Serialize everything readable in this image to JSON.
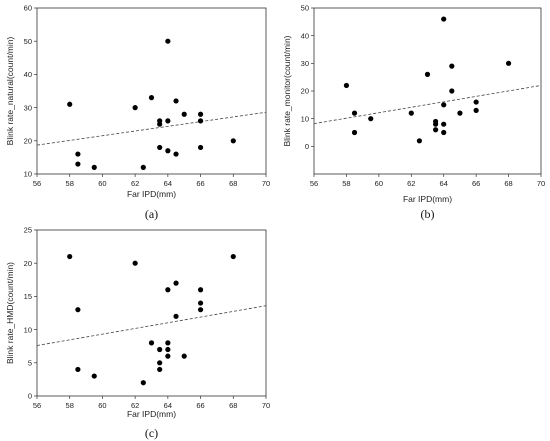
{
  "chart_data": [
    {
      "type": "scatter",
      "panel_label": "(a)",
      "xlabel": "Far IPD(mm)",
      "ylabel": "Blink rate_natural(count/min)",
      "xlim": [
        56,
        70
      ],
      "ylim": [
        10,
        60
      ],
      "xticks": [
        56,
        58,
        60,
        62,
        64,
        66,
        68,
        70
      ],
      "yticks": [
        10,
        20,
        30,
        40,
        50,
        60
      ],
      "points": [
        {
          "x": 58.0,
          "y": 31
        },
        {
          "x": 58.5,
          "y": 16
        },
        {
          "x": 58.5,
          "y": 13
        },
        {
          "x": 59.5,
          "y": 12
        },
        {
          "x": 62.0,
          "y": 30
        },
        {
          "x": 62.5,
          "y": 12
        },
        {
          "x": 63.0,
          "y": 33
        },
        {
          "x": 63.5,
          "y": 26
        },
        {
          "x": 63.5,
          "y": 25
        },
        {
          "x": 63.5,
          "y": 18
        },
        {
          "x": 64.0,
          "y": 50
        },
        {
          "x": 64.0,
          "y": 26
        },
        {
          "x": 64.0,
          "y": 17
        },
        {
          "x": 64.5,
          "y": 32
        },
        {
          "x": 64.5,
          "y": 16
        },
        {
          "x": 65.0,
          "y": 28
        },
        {
          "x": 66.0,
          "y": 28
        },
        {
          "x": 66.0,
          "y": 26
        },
        {
          "x": 66.0,
          "y": 18
        },
        {
          "x": 68.0,
          "y": 20
        }
      ],
      "trendline": {
        "x": [
          56,
          70
        ],
        "y": [
          18.7,
          28.6
        ],
        "style": "dashed"
      },
      "grid": false
    },
    {
      "type": "scatter",
      "panel_label": "(b)",
      "xlabel": "Far IPD(mm)",
      "ylabel": "Blink rate_monitor(count/min)",
      "xlim": [
        56,
        70
      ],
      "ylim": [
        -10,
        50
      ],
      "xticks": [
        56,
        58,
        60,
        62,
        64,
        66,
        68,
        70
      ],
      "yticks": [
        0,
        10,
        20,
        30,
        40,
        50
      ],
      "points": [
        {
          "x": 58.0,
          "y": 22
        },
        {
          "x": 58.5,
          "y": 12
        },
        {
          "x": 58.5,
          "y": 5
        },
        {
          "x": 59.5,
          "y": 10
        },
        {
          "x": 62.0,
          "y": 12
        },
        {
          "x": 62.5,
          "y": 2
        },
        {
          "x": 63.0,
          "y": 26
        },
        {
          "x": 63.5,
          "y": 9
        },
        {
          "x": 63.5,
          "y": 8
        },
        {
          "x": 63.5,
          "y": 6
        },
        {
          "x": 64.0,
          "y": 46
        },
        {
          "x": 64.0,
          "y": 15
        },
        {
          "x": 64.0,
          "y": 8
        },
        {
          "x": 64.0,
          "y": 5
        },
        {
          "x": 64.5,
          "y": 29
        },
        {
          "x": 64.5,
          "y": 20
        },
        {
          "x": 65.0,
          "y": 12
        },
        {
          "x": 66.0,
          "y": 16
        },
        {
          "x": 66.0,
          "y": 13
        },
        {
          "x": 68.0,
          "y": 30
        }
      ],
      "trendline": {
        "x": [
          56,
          70
        ],
        "y": [
          8.2,
          22.0
        ],
        "style": "dashed"
      },
      "grid": false
    },
    {
      "type": "scatter",
      "panel_label": "(c)",
      "xlabel": "Far IPD(mm)",
      "ylabel": "Blink rate_HMD(count/min)",
      "xlim": [
        56,
        70
      ],
      "ylim": [
        0,
        25
      ],
      "xticks": [
        56,
        58,
        60,
        62,
        64,
        66,
        68,
        70
      ],
      "yticks": [
        0,
        5,
        10,
        15,
        20,
        25
      ],
      "points": [
        {
          "x": 58.0,
          "y": 21
        },
        {
          "x": 58.5,
          "y": 13
        },
        {
          "x": 58.5,
          "y": 4
        },
        {
          "x": 59.5,
          "y": 3
        },
        {
          "x": 62.0,
          "y": 20
        },
        {
          "x": 62.5,
          "y": 2
        },
        {
          "x": 63.0,
          "y": 8
        },
        {
          "x": 63.5,
          "y": 7
        },
        {
          "x": 63.5,
          "y": 5
        },
        {
          "x": 63.5,
          "y": 4
        },
        {
          "x": 64.0,
          "y": 16
        },
        {
          "x": 64.0,
          "y": 8
        },
        {
          "x": 64.0,
          "y": 7
        },
        {
          "x": 64.0,
          "y": 6
        },
        {
          "x": 64.5,
          "y": 17
        },
        {
          "x": 64.5,
          "y": 12
        },
        {
          "x": 65.0,
          "y": 6
        },
        {
          "x": 66.0,
          "y": 16
        },
        {
          "x": 66.0,
          "y": 14
        },
        {
          "x": 66.0,
          "y": 13
        },
        {
          "x": 68.0,
          "y": 21
        }
      ],
      "trendline": {
        "x": [
          56,
          70
        ],
        "y": [
          7.6,
          13.6
        ],
        "style": "dashed"
      },
      "grid": false
    }
  ]
}
